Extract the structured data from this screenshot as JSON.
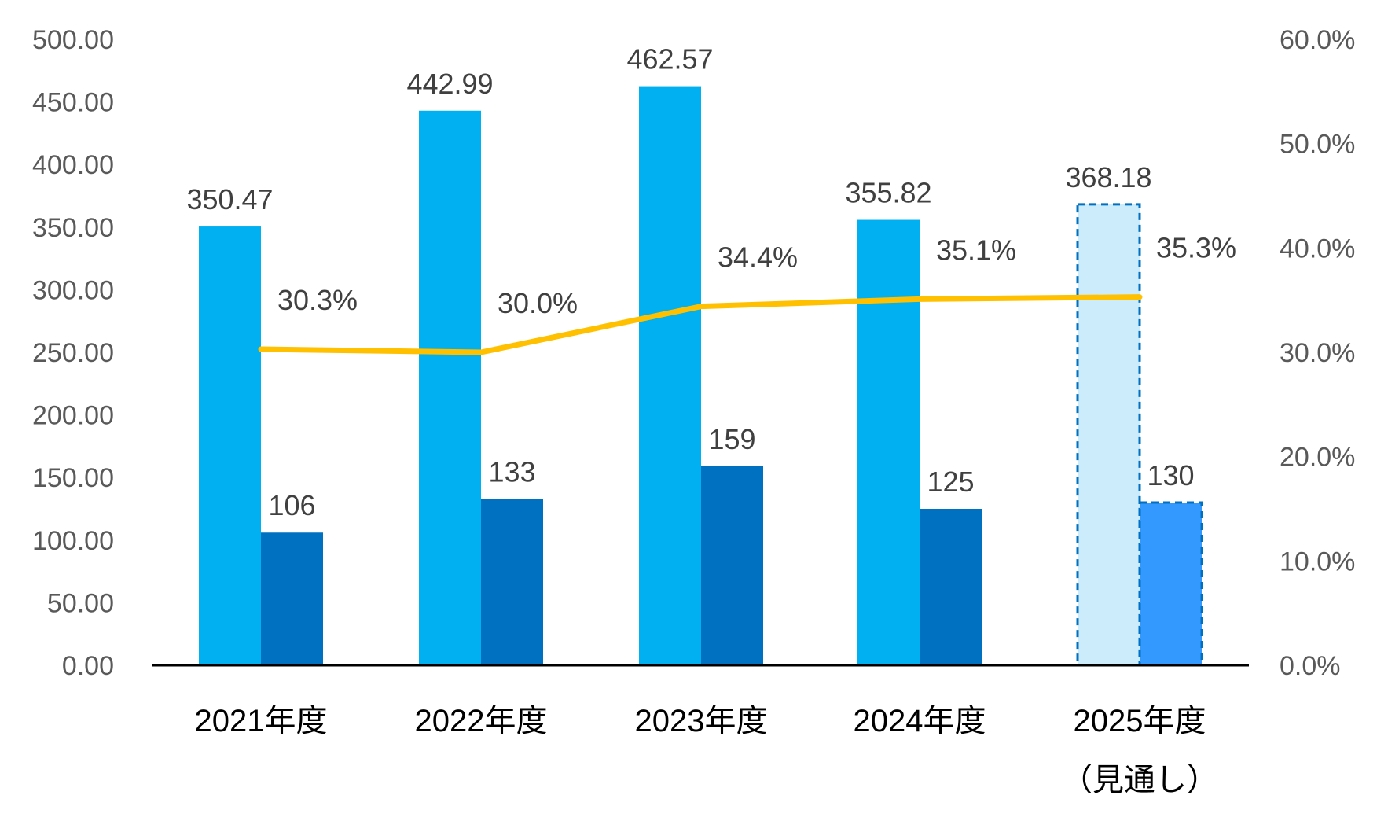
{
  "chart_data": {
    "type": "bar+line",
    "categories": [
      "2021年度",
      "2022年度",
      "2023年度",
      "2024年度",
      "2025年度"
    ],
    "category_sublabels": [
      "",
      "",
      "",
      "",
      "（見通し）"
    ],
    "forecast_index": 4,
    "series": [
      {
        "name": "series-1",
        "type": "bar",
        "axis": "left",
        "values": [
          350.47,
          442.99,
          462.57,
          355.82,
          368.18
        ],
        "labels": [
          "350.47",
          "442.99",
          "462.57",
          "355.82",
          "368.18"
        ],
        "color": "#00B0F0",
        "forecast_color": "#CCECFC"
      },
      {
        "name": "series-2",
        "type": "bar",
        "axis": "left",
        "values": [
          106,
          133,
          159,
          125,
          130
        ],
        "labels": [
          "106",
          "133",
          "159",
          "125",
          "130"
        ],
        "color": "#0070C0",
        "forecast_color": "#3399FF"
      },
      {
        "name": "series-3",
        "type": "line",
        "axis": "right",
        "values": [
          30.3,
          30.0,
          34.4,
          35.1,
          35.3
        ],
        "labels": [
          "30.3%",
          "30.0%",
          "34.4%",
          "35.1%",
          "35.3%"
        ],
        "color": "#FFC000"
      }
    ],
    "ylim": [
      0,
      500
    ],
    "y2lim": [
      0,
      60
    ],
    "yticks": [
      "0.00",
      "50.00",
      "100.00",
      "150.00",
      "200.00",
      "250.00",
      "300.00",
      "350.00",
      "400.00",
      "450.00",
      "500.00"
    ],
    "y2ticks": [
      "0.0%",
      "10.0%",
      "20.0%",
      "30.0%",
      "40.0%",
      "50.0%",
      "60.0%"
    ],
    "grid": false,
    "legend": "none",
    "forecast_border_color": "#0070C0"
  }
}
